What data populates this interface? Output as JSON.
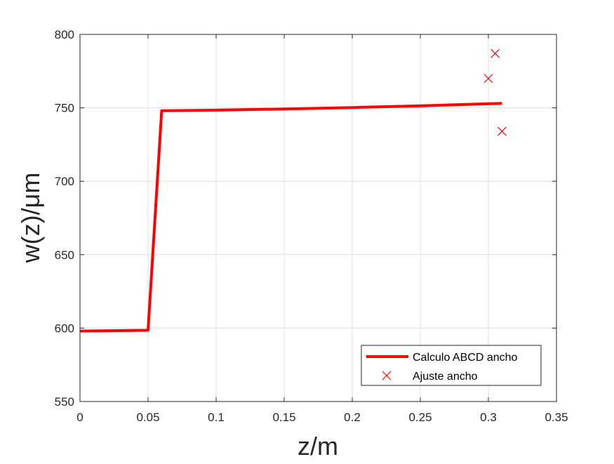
{
  "chart_data": {
    "type": "line",
    "title": "",
    "xlabel": "z/m",
    "ylabel": "w(z)/μm",
    "xlim": [
      0,
      0.35
    ],
    "ylim": [
      550,
      800
    ],
    "x_ticks": [
      0,
      0.05,
      0.1,
      0.15,
      0.2,
      0.25,
      0.3,
      0.35
    ],
    "x_tick_labels": [
      "0",
      "0.05",
      "0.1",
      "0.15",
      "0.2",
      "0.25",
      "0.3",
      "0.35"
    ],
    "y_ticks": [
      550,
      600,
      650,
      700,
      750,
      800
    ],
    "y_tick_labels": [
      "550",
      "600",
      "650",
      "700",
      "750",
      "800"
    ],
    "grid": true,
    "legend_position": "bottom-right",
    "series": [
      {
        "name": "Calculo ABCD ancho",
        "type": "line",
        "color": "#ff0000",
        "x": [
          0,
          0.05,
          0.06,
          0.1,
          0.15,
          0.2,
          0.25,
          0.31
        ],
        "y": [
          598,
          598.5,
          748,
          748.4,
          749.2,
          750.2,
          751.4,
          753
        ]
      },
      {
        "name": "Ajuste ancho",
        "type": "scatter",
        "marker": "x",
        "color": "#ff0000",
        "x": [
          0.3,
          0.305,
          0.31
        ],
        "y": [
          770,
          787,
          734
        ]
      }
    ]
  }
}
